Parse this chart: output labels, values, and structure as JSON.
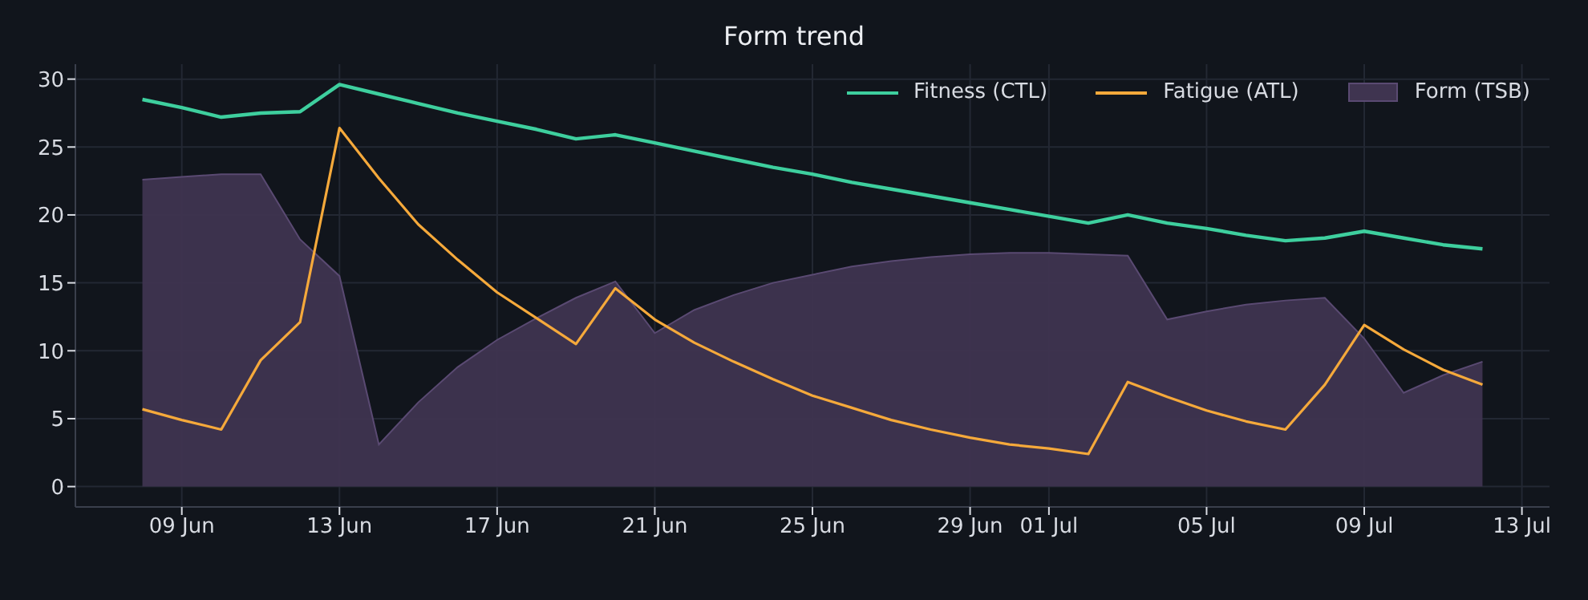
{
  "chart_data": {
    "type": "line",
    "title": "Form trend",
    "x": [
      "--06-08",
      "--06-09",
      "--06-10",
      "--06-11",
      "--06-12",
      "--06-13",
      "--06-14",
      "--06-15",
      "--06-16",
      "--06-17",
      "--06-18",
      "--06-19",
      "--06-20",
      "--06-21",
      "--06-22",
      "--06-23",
      "--06-24",
      "--06-25",
      "--06-26",
      "--06-27",
      "--06-28",
      "--06-29",
      "--06-30",
      "--07-01",
      "--07-02",
      "--07-03",
      "--07-04",
      "--07-05",
      "--07-06",
      "--07-07",
      "--07-08",
      "--07-09",
      "--07-10",
      "--07-11",
      "--07-12"
    ],
    "series": [
      {
        "name": "Fitness (CTL)",
        "type": "line",
        "color": "#3ecf9e",
        "values": [
          28.5,
          27.9,
          27.2,
          27.5,
          27.6,
          29.6,
          28.9,
          28.2,
          27.5,
          26.9,
          26.3,
          25.6,
          25.9,
          25.3,
          24.7,
          24.1,
          23.5,
          23.0,
          22.4,
          21.9,
          21.4,
          20.9,
          20.4,
          19.9,
          19.4,
          20.0,
          19.4,
          19.0,
          18.5,
          18.1,
          18.3,
          18.8,
          18.3,
          17.8,
          17.5
        ]
      },
      {
        "name": "Fatigue (ATL)",
        "type": "line",
        "color": "#f5a93b",
        "values": [
          5.7,
          4.9,
          4.2,
          9.3,
          12.1,
          26.4,
          22.7,
          19.3,
          16.7,
          14.3,
          12.4,
          10.5,
          14.6,
          12.3,
          10.6,
          9.2,
          7.9,
          6.7,
          5.8,
          4.9,
          4.2,
          3.6,
          3.1,
          2.8,
          2.4,
          7.7,
          6.6,
          5.6,
          4.8,
          4.2,
          7.5,
          11.9,
          10.1,
          8.6,
          7.5
        ]
      },
      {
        "name": "Form (TSB)",
        "type": "area",
        "color": "#3f3450",
        "values": [
          22.6,
          22.8,
          23.0,
          23.0,
          18.2,
          15.5,
          3.1,
          6.2,
          8.8,
          10.8,
          12.4,
          13.9,
          15.1,
          11.3,
          13.0,
          14.1,
          15.0,
          15.6,
          16.2,
          16.6,
          16.9,
          17.1,
          17.2,
          17.2,
          17.1,
          17.0,
          12.3,
          12.9,
          13.4,
          13.7,
          13.9,
          10.9,
          6.9,
          8.2,
          9.2
        ]
      }
    ],
    "xlim": [
      "--06-06T07:12",
      "--07-13T16:48"
    ],
    "xticks": [
      {
        "value": "--06-09",
        "label": "09 Jun"
      },
      {
        "value": "--06-13",
        "label": "13 Jun"
      },
      {
        "value": "--06-17",
        "label": "17 Jun"
      },
      {
        "value": "--06-21",
        "label": "21 Jun"
      },
      {
        "value": "--06-25",
        "label": "25 Jun"
      },
      {
        "value": "--06-29",
        "label": "29 Jun"
      },
      {
        "value": "--07-01",
        "label": "01 Jul"
      },
      {
        "value": "--07-05",
        "label": "05 Jul"
      },
      {
        "value": "--07-09",
        "label": "09 Jul"
      },
      {
        "value": "--07-13",
        "label": "13 Jul"
      }
    ],
    "ylim": [
      -1.5,
      31.1
    ],
    "yticks": [
      0,
      5,
      10,
      15,
      20,
      25,
      30
    ],
    "grid": true,
    "legend": "top right"
  }
}
